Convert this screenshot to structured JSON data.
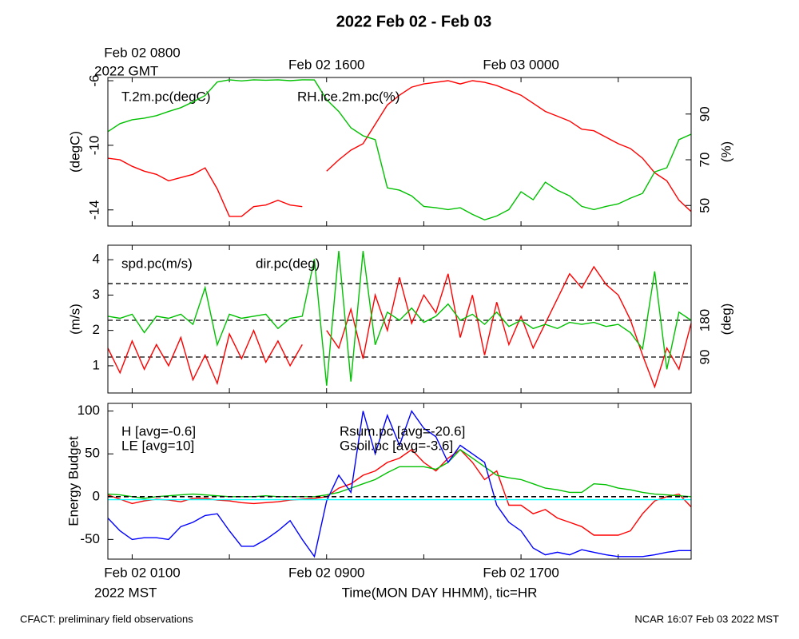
{
  "title": "2022 Feb 02 - Feb 03",
  "time_axis": {
    "xlim": [
      0,
      24
    ],
    "xticks": [
      {
        "value": 1,
        "label": "Feb 02 0100"
      },
      {
        "value": 9,
        "label": "Feb 02 0900"
      },
      {
        "value": 17,
        "label": "Feb 02 1700"
      }
    ],
    "xminor": [
      5,
      13,
      21
    ],
    "top_ticks": [
      {
        "value": 1,
        "label": "Feb 02 0800"
      },
      {
        "value": 9,
        "label": "Feb 02 1600"
      },
      {
        "value": 17,
        "label": "Feb 03 0000"
      }
    ],
    "top_year": "2022 GMT",
    "bottom_year": "2022 MST",
    "xlabel": "Time(MON DAY HHMM), tic=HR"
  },
  "footer_left": "CFACT: preliminary field observations",
  "footer_right": "NCAR 16:07 Feb 03 2022 MST",
  "chart_data": [
    {
      "type": "line",
      "ylabel": "(degC)",
      "y2label": "(%)",
      "ylim": [
        -15,
        -5.8
      ],
      "yticks": [
        -6,
        -10,
        -14
      ],
      "yticks_rotated": true,
      "y2lim": [
        41,
        106
      ],
      "y2ticks": [
        50,
        70,
        90
      ],
      "x": [
        0,
        0.5,
        1,
        1.5,
        2,
        2.5,
        3,
        3.5,
        4,
        4.5,
        5,
        5.5,
        6,
        6.5,
        7,
        7.5,
        8,
        8.5,
        9,
        9.5,
        10,
        10.5,
        11,
        11.5,
        12,
        12.5,
        13,
        13.5,
        14,
        14.5,
        15,
        15.5,
        16,
        16.5,
        17,
        17.5,
        18,
        18.5,
        19,
        19.5,
        20,
        20.5,
        21,
        21.5,
        22,
        22.5,
        23,
        23.5,
        24
      ],
      "series": [
        {
          "name": "T.2m.pc(degC)",
          "color": "#ff0000",
          "axis": "y",
          "values": [
            -10.8,
            -10.9,
            -11.3,
            -11.6,
            -11.8,
            -12.2,
            -12.0,
            -11.8,
            -11.4,
            -12.7,
            -14.4,
            -14.4,
            -13.8,
            -13.7,
            -13.4,
            -13.7,
            -13.8,
            null,
            -11.6,
            -10.9,
            -10.3,
            -9.9,
            -8.7,
            -7.5,
            -6.9,
            -6.4,
            -6.2,
            -6.1,
            -6.0,
            -6.2,
            -6.0,
            -6.1,
            -6.3,
            -6.6,
            -6.9,
            -7.4,
            -7.9,
            -8.2,
            -8.5,
            -9.0,
            -9.1,
            -9.5,
            -9.9,
            -10.2,
            -10.8,
            -11.7,
            -12.2,
            -13.4,
            -14.1
          ]
        },
        {
          "name": "RH.ice.2m.pc(%)",
          "color": "#00c000",
          "axis": "y2",
          "values": [
            82.3,
            85.8,
            87.5,
            88.2,
            89.3,
            91.1,
            92.8,
            95.3,
            98.1,
            104,
            105,
            104.5,
            105,
            104.8,
            105,
            104.6,
            105,
            104.9,
            96.3,
            91.1,
            84.0,
            80.5,
            78.8,
            57.7,
            56.7,
            54.2,
            49.6,
            49.0,
            48.2,
            49.0,
            46.1,
            43.7,
            45.4,
            48.2,
            56.0,
            52.5,
            60.2,
            56.7,
            54.2,
            49.6,
            48.2,
            49.6,
            50.7,
            53.2,
            55.3,
            64.7,
            66.5,
            78.8,
            81.2
          ]
        }
      ]
    },
    {
      "type": "line",
      "ylabel": "(m/s)",
      "y2label": "(deg)",
      "ylim": [
        0.23,
        4.41
      ],
      "yticks": [
        1,
        2,
        3,
        4
      ],
      "yticks_rotated": false,
      "y2lim": [
        2,
        364
      ],
      "y2ticks": [
        90,
        180
      ],
      "y2_ref_lines": [
        90,
        180,
        270
      ],
      "x": [
        0,
        0.5,
        1,
        1.5,
        2,
        2.5,
        3,
        3.5,
        4,
        4.5,
        5,
        5.5,
        6,
        6.5,
        7,
        7.5,
        8,
        8.5,
        9,
        9.5,
        10,
        10.5,
        11,
        11.5,
        12,
        12.5,
        13,
        13.5,
        14,
        14.5,
        15,
        15.5,
        16,
        16.5,
        17,
        17.5,
        18,
        18.5,
        19,
        19.5,
        20,
        20.5,
        21,
        21.5,
        22,
        22.5,
        23,
        23.5,
        24
      ],
      "series": [
        {
          "name": "spd.pc(m/s)",
          "color": "#ff0000",
          "axis": "y",
          "values": [
            1.5,
            0.8,
            1.7,
            0.9,
            1.6,
            1.0,
            1.8,
            0.6,
            1.3,
            0.5,
            1.9,
            1.2,
            2.0,
            1.1,
            1.7,
            1.0,
            1.6,
            null,
            2.0,
            1.5,
            2.6,
            1.2,
            3.0,
            2.0,
            3.5,
            2.2,
            3.0,
            2.5,
            3.6,
            1.8,
            3.0,
            1.3,
            2.8,
            1.6,
            2.4,
            1.5,
            2.2,
            2.9,
            3.6,
            3.2,
            3.8,
            3.3,
            3.0,
            2.3,
            1.3,
            0.4,
            1.5,
            0.9,
            2.2
          ]
        },
        {
          "name": "dir.pc(deg)",
          "color": "#00c000",
          "axis": "y2",
          "values": [
            190,
            185,
            195,
            150,
            190,
            185,
            195,
            170,
            260,
            120,
            195,
            185,
            190,
            195,
            160,
            185,
            190,
            330,
            20,
            350,
            30,
            350,
            120,
            200,
            180,
            210,
            175,
            190,
            220,
            180,
            195,
            170,
            200,
            165,
            180,
            160,
            170,
            160,
            175,
            170,
            175,
            165,
            170,
            150,
            110,
            300,
            60,
            200,
            180
          ]
        }
      ]
    },
    {
      "type": "line",
      "ylabel": "Energy Budget",
      "ylim": [
        -73,
        109
      ],
      "yticks": [
        -50,
        0,
        50,
        100
      ],
      "yticks_rotated": false,
      "ref_lines": [
        0
      ],
      "x": [
        0,
        0.5,
        1,
        1.5,
        2,
        2.5,
        3,
        3.5,
        4,
        4.5,
        5,
        5.5,
        6,
        6.5,
        7,
        7.5,
        8,
        8.5,
        9,
        9.5,
        10,
        10.5,
        11,
        11.5,
        12,
        12.5,
        13,
        13.5,
        14,
        14.5,
        15,
        15.5,
        16,
        16.5,
        17,
        17.5,
        18,
        18.5,
        19,
        19.5,
        20,
        20.5,
        21,
        21.5,
        22,
        22.5,
        23,
        23.5,
        24
      ],
      "series": [
        {
          "name": "H [avg=-0.6]",
          "color": "#ff0000",
          "axis": "y",
          "values": [
            2,
            -3,
            -8,
            -5,
            -3,
            -4,
            -6,
            -2,
            -2,
            -4,
            -5,
            -7,
            -8,
            -7,
            -6,
            -4,
            -3,
            -2,
            0,
            10,
            15,
            25,
            30,
            40,
            45,
            55,
            40,
            30,
            45,
            55,
            40,
            20,
            30,
            -10,
            -10,
            -20,
            -15,
            -25,
            -30,
            -35,
            -45,
            -45,
            -45,
            -40,
            -20,
            -5,
            0,
            3,
            -12
          ]
        },
        {
          "name": "LE [avg=10]",
          "color": "#00c000",
          "axis": "y",
          "values": [
            3,
            2,
            0,
            -2,
            0,
            1,
            2,
            3,
            2,
            1,
            0,
            0,
            0,
            1,
            0,
            0,
            0,
            0,
            2,
            5,
            10,
            15,
            20,
            28,
            35,
            35,
            35,
            32,
            40,
            55,
            45,
            35,
            25,
            22,
            20,
            15,
            10,
            8,
            5,
            5,
            15,
            14,
            10,
            8,
            5,
            3,
            2,
            1,
            0
          ]
        },
        {
          "name": "Rsum.pc [avg=-20.6]",
          "color": "#0000ff",
          "axis": "y",
          "values": [
            -25,
            -40,
            -50,
            -48,
            -48,
            -50,
            -35,
            -30,
            -22,
            -20,
            -40,
            -58,
            -58,
            -50,
            -40,
            -28,
            -50,
            -70,
            -5,
            25,
            5,
            100,
            50,
            95,
            60,
            100,
            80,
            70,
            40,
            60,
            50,
            40,
            -10,
            -30,
            -40,
            -60,
            -68,
            -65,
            -68,
            -62,
            -65,
            -68,
            -70,
            -70,
            -70,
            -68,
            -65,
            -63,
            -63
          ]
        },
        {
          "name": "Gsoil.pc [avg=-3.6]",
          "color": "#00ffff",
          "axis": "y",
          "values": [
            -3.6,
            -3.6,
            -3.6,
            -3.6,
            -3.6,
            -3.6,
            -3.6,
            -3.6,
            -3.6,
            -3.6,
            -3.6,
            -3.6,
            -3.6,
            -3.6,
            -3.6,
            -3.6,
            -3.6,
            -3.6,
            -3.6,
            -3.6,
            -3.6,
            -3.6,
            -3.6,
            -3.6,
            -3.6,
            -3.6,
            -3.6,
            -3.6,
            -3.6,
            -3.6,
            -3.6,
            -3.6,
            -3.6,
            -3.6,
            -3.6,
            -3.6,
            -3.6,
            -3.6,
            -3.6,
            -3.6,
            -3.6,
            -3.6,
            -3.6,
            -3.6,
            -3.6,
            -3.6,
            -3.6,
            -3.6,
            -3.6
          ]
        }
      ]
    }
  ]
}
